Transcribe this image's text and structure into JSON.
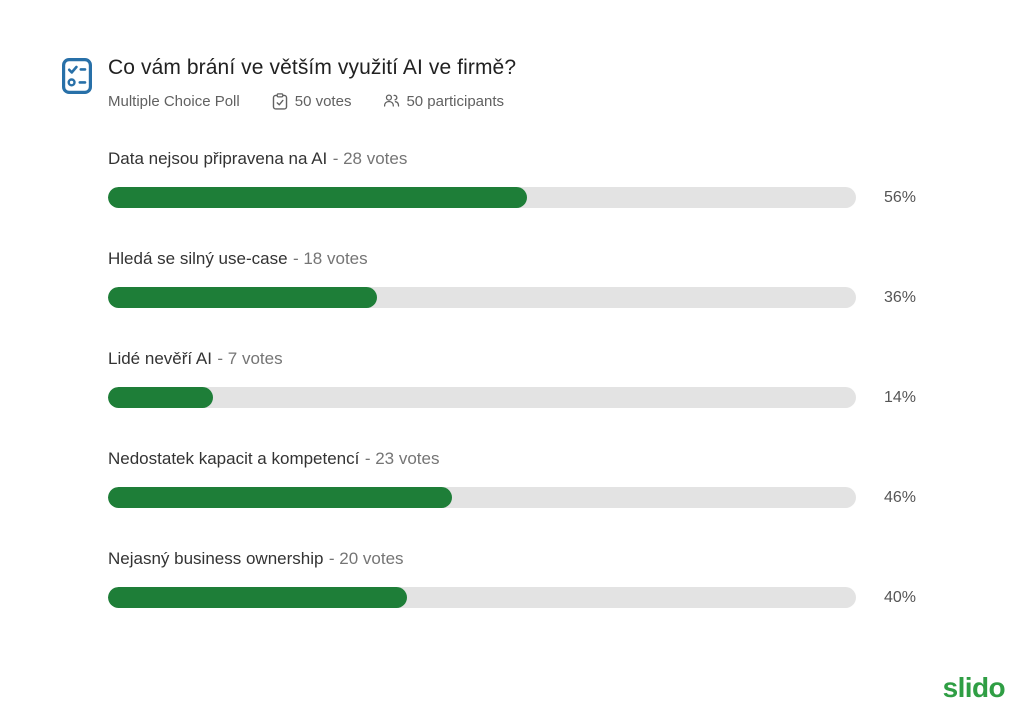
{
  "header": {
    "title": "Co vám brání ve větším využití AI ve firmě?",
    "poll_type": "Multiple Choice Poll",
    "votes_label": "50 votes",
    "participants_label": "50 participants"
  },
  "options": [
    {
      "label": "Data nejsou připravena na AI",
      "votes_text": "- 28 votes",
      "votes": 28,
      "percent": 56,
      "percent_label": "56%"
    },
    {
      "label": "Hledá se silný use-case",
      "votes_text": "- 18 votes",
      "votes": 18,
      "percent": 36,
      "percent_label": "36%"
    },
    {
      "label": "Lidé nevěří AI",
      "votes_text": "- 7 votes",
      "votes": 7,
      "percent": 14,
      "percent_label": "14%"
    },
    {
      "label": "Nedostatek kapacit a kompetencí",
      "votes_text": "- 23 votes",
      "votes": 23,
      "percent": 46,
      "percent_label": "46%"
    },
    {
      "label": "Nejasný business ownership",
      "votes_text": "- 20 votes",
      "votes": 20,
      "percent": 40,
      "percent_label": "40%"
    }
  ],
  "chart_data": {
    "type": "bar",
    "orientation": "horizontal",
    "title": "Co vám brání ve většímu využití AI ve firmě?",
    "categories": [
      "Data nejsou připravena na AI",
      "Hledá se silný use-case",
      "Lidé nevěří AI",
      "Nedostatek kapacit a kompetencí",
      "Nejasný business ownership"
    ],
    "series": [
      {
        "name": "votes",
        "values": [
          28,
          18,
          7,
          23,
          20
        ]
      },
      {
        "name": "percent",
        "values": [
          56,
          36,
          14,
          46,
          40
        ]
      }
    ],
    "xlabel": "",
    "ylabel": "",
    "xlim": [
      0,
      100
    ],
    "value_suffix": "%",
    "grid": false,
    "legend": false,
    "total_votes": 50,
    "total_participants": 50
  },
  "footer": {
    "logo": "slido"
  },
  "icons": {
    "poll_icon": "checklist-icon",
    "votes_icon": "clipboard-check-icon",
    "participants_icon": "people-icon"
  },
  "colors": {
    "bar_fill": "#1e7e38",
    "bar_track": "#e3e3e3",
    "icon_blue": "#2870a8",
    "logo_green": "#2f9e44",
    "title_text": "#212121",
    "option_text": "#333333",
    "muted_text": "#757575",
    "meta_text": "#616161",
    "percent_text": "#555555"
  }
}
